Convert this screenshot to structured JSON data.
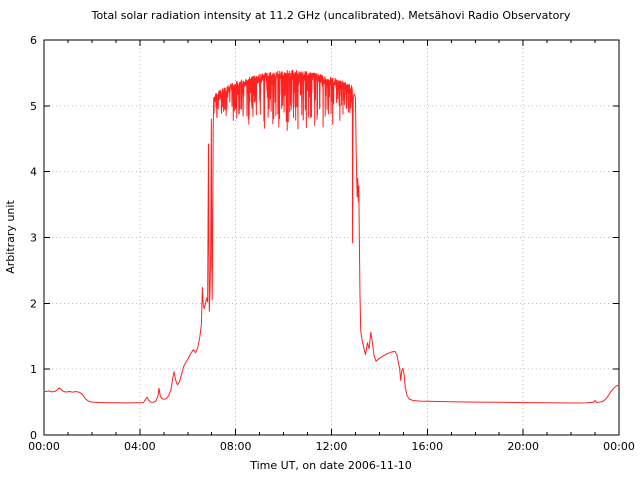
{
  "chart_data": {
    "type": "line",
    "title": "Total solar radiation intensity at 11.2 GHz (uncalibrated). Metsähovi Radio Observatory",
    "xlabel": "Time UT, on date 2006-11-10",
    "ylabel": "Arbitrary unit",
    "x_axis": {
      "unit": "hours UT",
      "min": 0,
      "max": 24,
      "major_ticks": [
        {
          "hour": 0,
          "label": "00:00"
        },
        {
          "hour": 4,
          "label": "04:00"
        },
        {
          "hour": 8,
          "label": "08:00"
        },
        {
          "hour": 12,
          "label": "12:00"
        },
        {
          "hour": 16,
          "label": "16:00"
        },
        {
          "hour": 20,
          "label": "20:00"
        },
        {
          "hour": 24,
          "label": "00:00"
        }
      ],
      "minor_tick_every_hours": 1
    },
    "y_axis": {
      "min": 0,
      "max": 6,
      "major_ticks": [
        0,
        1,
        2,
        3,
        4,
        5,
        6
      ]
    },
    "grid": {
      "shown": true,
      "style": "dotted",
      "color": "#bdbdbd"
    },
    "frame_color": "#000000",
    "series_name": "solar radiation intensity",
    "series_color": "#ff2020",
    "pre_points": [
      [
        0,
        0.665
      ],
      [
        0.1,
        0.66
      ],
      [
        0.2,
        0.67
      ],
      [
        0.32,
        0.655
      ],
      [
        0.45,
        0.66
      ],
      [
        0.55,
        0.685
      ],
      [
        0.63,
        0.715
      ],
      [
        0.7,
        0.7
      ],
      [
        0.78,
        0.668
      ],
      [
        0.9,
        0.652
      ],
      [
        1.05,
        0.66
      ],
      [
        1.2,
        0.652
      ],
      [
        1.35,
        0.66
      ],
      [
        1.48,
        0.648
      ],
      [
        1.6,
        0.62
      ],
      [
        1.72,
        0.555
      ],
      [
        1.85,
        0.515
      ],
      [
        2.0,
        0.5
      ],
      [
        2.3,
        0.494
      ],
      [
        2.7,
        0.49
      ],
      [
        3.1,
        0.49
      ],
      [
        3.5,
        0.488
      ],
      [
        3.9,
        0.49
      ],
      [
        4.15,
        0.492
      ],
      [
        4.24,
        0.545
      ],
      [
        4.3,
        0.575
      ],
      [
        4.37,
        0.53
      ],
      [
        4.45,
        0.5
      ],
      [
        4.58,
        0.498
      ],
      [
        4.68,
        0.52
      ],
      [
        4.76,
        0.6
      ],
      [
        4.8,
        0.71
      ],
      [
        4.85,
        0.6
      ],
      [
        4.92,
        0.553
      ],
      [
        5.0,
        0.542
      ],
      [
        5.1,
        0.55
      ],
      [
        5.2,
        0.595
      ],
      [
        5.3,
        0.69
      ],
      [
        5.38,
        0.88
      ],
      [
        5.43,
        0.96
      ],
      [
        5.49,
        0.84
      ],
      [
        5.57,
        0.762
      ],
      [
        5.65,
        0.8
      ],
      [
        5.74,
        0.92
      ],
      [
        5.83,
        1.04
      ],
      [
        5.93,
        1.11
      ],
      [
        6.03,
        1.17
      ],
      [
        6.13,
        1.24
      ],
      [
        6.23,
        1.295
      ],
      [
        6.33,
        1.25
      ],
      [
        6.42,
        1.33
      ],
      [
        6.5,
        1.48
      ],
      [
        6.57,
        1.68
      ],
      [
        6.61,
        2.24
      ],
      [
        6.645,
        1.98
      ],
      [
        6.69,
        1.92
      ],
      [
        6.74,
        2.0
      ],
      [
        6.79,
        2.08
      ],
      [
        6.83,
        2.02
      ],
      [
        6.865,
        4.42
      ],
      [
        6.9,
        1.88
      ],
      [
        6.93,
        2.2
      ],
      [
        6.96,
        2.9
      ],
      [
        6.985,
        4.8
      ],
      [
        7.005,
        2.6
      ],
      [
        7.02,
        2.05
      ],
      [
        7.045,
        3.4
      ],
      [
        7.06,
        4.6
      ],
      [
        7.08,
        5.05
      ]
    ],
    "plateau": {
      "start_hour": 7.08,
      "end_hour": 12.865,
      "envelope": [
        [
          7.08,
          5.1
        ],
        [
          7.3,
          5.16
        ],
        [
          7.6,
          5.23
        ],
        [
          8.0,
          5.3
        ],
        [
          8.4,
          5.35
        ],
        [
          8.8,
          5.4
        ],
        [
          9.2,
          5.43
        ],
        [
          9.6,
          5.455
        ],
        [
          10.0,
          5.465
        ],
        [
          10.4,
          5.47
        ],
        [
          10.8,
          5.46
        ],
        [
          11.2,
          5.44
        ],
        [
          11.6,
          5.41
        ],
        [
          12.0,
          5.37
        ],
        [
          12.4,
          5.32
        ],
        [
          12.7,
          5.27
        ],
        [
          12.865,
          5.23
        ]
      ],
      "jitter_amplitude": 0.07,
      "sample_step_minutes": 0.5,
      "dip_probability": 0.27,
      "dip_depth_anchors": [
        [
          7.08,
          0.22
        ],
        [
          8.0,
          0.42
        ],
        [
          9.0,
          0.55
        ],
        [
          10.3,
          0.62
        ],
        [
          11.5,
          0.55
        ],
        [
          12.4,
          0.4
        ],
        [
          12.865,
          0.25
        ]
      ],
      "deep_dips": [
        [
          7.9,
          4.78
        ],
        [
          8.55,
          4.72
        ],
        [
          9.2,
          4.66
        ],
        [
          9.55,
          4.73
        ],
        [
          9.8,
          4.68
        ],
        [
          10.15,
          4.63
        ],
        [
          10.6,
          4.65
        ],
        [
          10.95,
          4.67
        ],
        [
          11.3,
          4.7
        ],
        [
          11.65,
          4.68
        ],
        [
          12.05,
          4.72
        ],
        [
          12.35,
          4.78
        ]
      ],
      "seed": 20061110
    },
    "post_points": [
      [
        12.87,
        5.2
      ],
      [
        12.88,
        2.92
      ],
      [
        12.895,
        4.6
      ],
      [
        12.91,
        5.12
      ],
      [
        12.95,
        5.18
      ],
      [
        13.0,
        5.12
      ],
      [
        13.03,
        4.3
      ],
      [
        13.05,
        3.95
      ],
      [
        13.07,
        3.62
      ],
      [
        13.095,
        3.9
      ],
      [
        13.12,
        3.55
      ],
      [
        13.14,
        3.78
      ],
      [
        13.16,
        3.05
      ],
      [
        13.19,
        2.1
      ],
      [
        13.22,
        1.58
      ],
      [
        13.28,
        1.44
      ],
      [
        13.35,
        1.32
      ],
      [
        13.42,
        1.22
      ],
      [
        13.5,
        1.4
      ],
      [
        13.57,
        1.31
      ],
      [
        13.64,
        1.56
      ],
      [
        13.7,
        1.42
      ],
      [
        13.78,
        1.2
      ],
      [
        13.86,
        1.12
      ],
      [
        13.95,
        1.15
      ],
      [
        14.1,
        1.19
      ],
      [
        14.3,
        1.23
      ],
      [
        14.5,
        1.26
      ],
      [
        14.65,
        1.27
      ],
      [
        14.73,
        1.22
      ],
      [
        14.79,
        1.1
      ],
      [
        14.84,
        1.02
      ],
      [
        14.89,
        0.83
      ],
      [
        14.93,
        0.97
      ],
      [
        14.98,
        1.01
      ],
      [
        15.03,
        0.92
      ],
      [
        15.08,
        0.72
      ],
      [
        15.15,
        0.6
      ],
      [
        15.25,
        0.545
      ],
      [
        15.4,
        0.525
      ],
      [
        15.7,
        0.515
      ],
      [
        16.2,
        0.51
      ],
      [
        17.0,
        0.505
      ],
      [
        18.0,
        0.5
      ],
      [
        19.0,
        0.497
      ],
      [
        20.0,
        0.492
      ],
      [
        21.0,
        0.49
      ],
      [
        22.0,
        0.487
      ],
      [
        22.6,
        0.488
      ],
      [
        22.95,
        0.5
      ],
      [
        23.0,
        0.525
      ],
      [
        23.06,
        0.495
      ],
      [
        23.2,
        0.5
      ],
      [
        23.35,
        0.515
      ],
      [
        23.5,
        0.565
      ],
      [
        23.65,
        0.655
      ],
      [
        23.8,
        0.72
      ],
      [
        23.92,
        0.75
      ],
      [
        24,
        0.76
      ]
    ]
  }
}
